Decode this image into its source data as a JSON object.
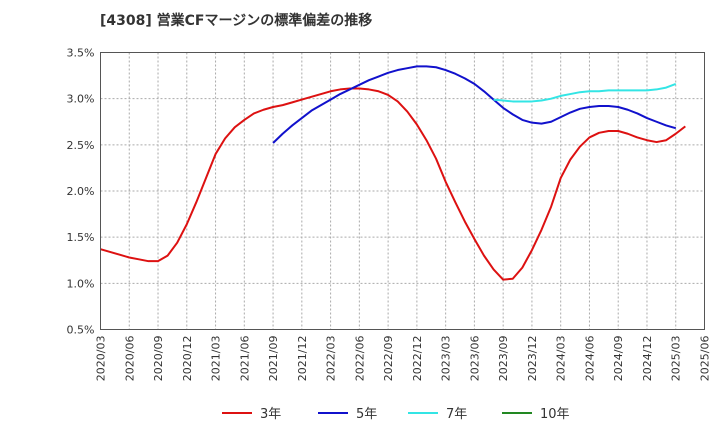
{
  "chart_data": {
    "type": "line",
    "title": "[4308]  営業CFマージンの標準偏差の推移",
    "xlabel": "",
    "ylabel": "",
    "x_ticks": [
      "2020/03",
      "2020/06",
      "2020/09",
      "2020/12",
      "2021/03",
      "2021/06",
      "2021/09",
      "2021/12",
      "2022/03",
      "2022/06",
      "2022/09",
      "2022/12",
      "2023/03",
      "2023/06",
      "2023/09",
      "2023/12",
      "2024/03",
      "2024/06",
      "2024/09",
      "2024/12",
      "2025/03",
      "2025/06"
    ],
    "y_ticks": [
      "0.5%",
      "1.0%",
      "1.5%",
      "2.0%",
      "2.5%",
      "3.0%",
      "3.5%"
    ],
    "ylim": [
      0.5,
      3.5
    ],
    "grid": true,
    "legend_position": "bottom",
    "series": [
      {
        "name": "3年",
        "color": "#dd1111",
        "points": [
          [
            "2020/03",
            1.37
          ],
          [
            "2020/04",
            1.34
          ],
          [
            "2020/05",
            1.31
          ],
          [
            "2020/06",
            1.28
          ],
          [
            "2020/07",
            1.26
          ],
          [
            "2020/08",
            1.24
          ],
          [
            "2020/09",
            1.24
          ],
          [
            "2020/10",
            1.3
          ],
          [
            "2020/11",
            1.44
          ],
          [
            "2020/12",
            1.64
          ],
          [
            "2021/01",
            1.88
          ],
          [
            "2021/02",
            2.14
          ],
          [
            "2021/03",
            2.4
          ],
          [
            "2021/04",
            2.57
          ],
          [
            "2021/05",
            2.69
          ],
          [
            "2021/06",
            2.77
          ],
          [
            "2021/07",
            2.84
          ],
          [
            "2021/08",
            2.88
          ],
          [
            "2021/09",
            2.91
          ],
          [
            "2021/10",
            2.93
          ],
          [
            "2021/11",
            2.96
          ],
          [
            "2021/12",
            2.99
          ],
          [
            "2022/01",
            3.02
          ],
          [
            "2022/02",
            3.05
          ],
          [
            "2022/03",
            3.08
          ],
          [
            "2022/04",
            3.1
          ],
          [
            "2022/05",
            3.11
          ],
          [
            "2022/06",
            3.11
          ],
          [
            "2022/07",
            3.1
          ],
          [
            "2022/08",
            3.08
          ],
          [
            "2022/09",
            3.04
          ],
          [
            "2022/10",
            2.97
          ],
          [
            "2022/11",
            2.86
          ],
          [
            "2022/12",
            2.72
          ],
          [
            "2023/01",
            2.55
          ],
          [
            "2023/02",
            2.35
          ],
          [
            "2023/03",
            2.1
          ],
          [
            "2023/04",
            1.88
          ],
          [
            "2023/05",
            1.67
          ],
          [
            "2023/06",
            1.48
          ],
          [
            "2023/07",
            1.3
          ],
          [
            "2023/08",
            1.15
          ],
          [
            "2023/09",
            1.04
          ],
          [
            "2023/10",
            1.05
          ],
          [
            "2023/11",
            1.17
          ],
          [
            "2023/12",
            1.36
          ],
          [
            "2024/01",
            1.58
          ],
          [
            "2024/02",
            1.83
          ],
          [
            "2024/03",
            2.14
          ],
          [
            "2024/04",
            2.34
          ],
          [
            "2024/05",
            2.48
          ],
          [
            "2024/06",
            2.58
          ],
          [
            "2024/07",
            2.63
          ],
          [
            "2024/08",
            2.65
          ],
          [
            "2024/09",
            2.65
          ],
          [
            "2024/10",
            2.62
          ],
          [
            "2024/11",
            2.58
          ],
          [
            "2024/12",
            2.55
          ],
          [
            "2025/01",
            2.53
          ],
          [
            "2025/02",
            2.55
          ],
          [
            "2025/03",
            2.62
          ],
          [
            "2025/04",
            2.7
          ]
        ]
      },
      {
        "name": "5年",
        "color": "#1111cc",
        "points": [
          [
            "2021/09",
            2.52
          ],
          [
            "2021/10",
            2.62
          ],
          [
            "2021/11",
            2.71
          ],
          [
            "2021/12",
            2.79
          ],
          [
            "2022/01",
            2.87
          ],
          [
            "2022/02",
            2.93
          ],
          [
            "2022/03",
            2.99
          ],
          [
            "2022/04",
            3.05
          ],
          [
            "2022/05",
            3.1
          ],
          [
            "2022/06",
            3.15
          ],
          [
            "2022/07",
            3.2
          ],
          [
            "2022/08",
            3.24
          ],
          [
            "2022/09",
            3.28
          ],
          [
            "2022/10",
            3.31
          ],
          [
            "2022/11",
            3.33
          ],
          [
            "2022/12",
            3.35
          ],
          [
            "2023/01",
            3.35
          ],
          [
            "2023/02",
            3.34
          ],
          [
            "2023/03",
            3.31
          ],
          [
            "2023/04",
            3.27
          ],
          [
            "2023/05",
            3.22
          ],
          [
            "2023/06",
            3.16
          ],
          [
            "2023/07",
            3.08
          ],
          [
            "2023/08",
            2.99
          ],
          [
            "2023/09",
            2.9
          ],
          [
            "2023/10",
            2.83
          ],
          [
            "2023/11",
            2.77
          ],
          [
            "2023/12",
            2.74
          ],
          [
            "2024/01",
            2.73
          ],
          [
            "2024/02",
            2.75
          ],
          [
            "2024/03",
            2.8
          ],
          [
            "2024/04",
            2.85
          ],
          [
            "2024/05",
            2.89
          ],
          [
            "2024/06",
            2.91
          ],
          [
            "2024/07",
            2.92
          ],
          [
            "2024/08",
            2.92
          ],
          [
            "2024/09",
            2.91
          ],
          [
            "2024/10",
            2.88
          ],
          [
            "2024/11",
            2.84
          ],
          [
            "2024/12",
            2.79
          ],
          [
            "2025/01",
            2.75
          ],
          [
            "2025/02",
            2.71
          ],
          [
            "2025/03",
            2.68
          ]
        ]
      },
      {
        "name": "7年",
        "color": "#33e5e5",
        "points": [
          [
            "2023/08",
            2.99
          ],
          [
            "2023/09",
            2.98
          ],
          [
            "2023/10",
            2.97
          ],
          [
            "2023/11",
            2.97
          ],
          [
            "2023/12",
            2.97
          ],
          [
            "2024/01",
            2.98
          ],
          [
            "2024/02",
            3.0
          ],
          [
            "2024/03",
            3.03
          ],
          [
            "2024/04",
            3.05
          ],
          [
            "2024/05",
            3.07
          ],
          [
            "2024/06",
            3.08
          ],
          [
            "2024/07",
            3.08
          ],
          [
            "2024/08",
            3.09
          ],
          [
            "2024/09",
            3.09
          ],
          [
            "2024/10",
            3.09
          ],
          [
            "2024/11",
            3.09
          ],
          [
            "2024/12",
            3.09
          ],
          [
            "2025/01",
            3.1
          ],
          [
            "2025/02",
            3.12
          ],
          [
            "2025/03",
            3.16
          ]
        ]
      },
      {
        "name": "10年",
        "color": "#228822",
        "points": []
      }
    ]
  }
}
